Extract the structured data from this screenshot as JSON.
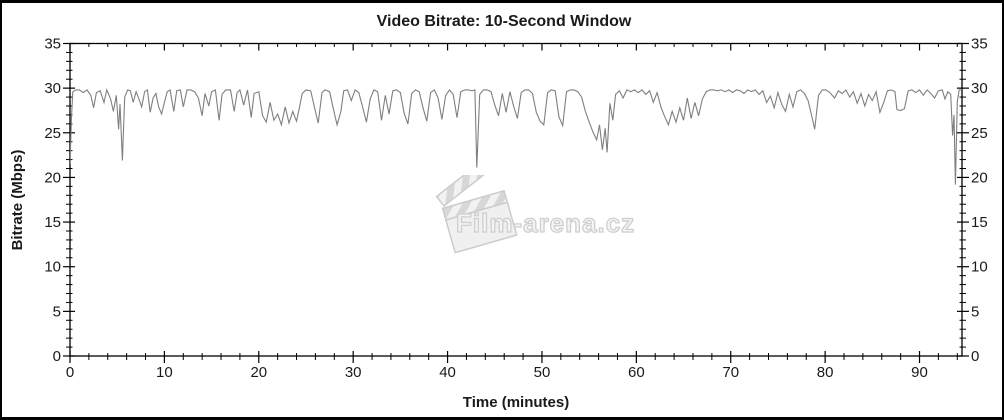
{
  "page": {
    "background": "#ffffff",
    "border_color": "#000000"
  },
  "watermark": {
    "text": "Film-arena.cz",
    "color": "#e9e9e9",
    "outline_color": "#cfcfcf"
  },
  "chart_data": {
    "type": "line",
    "title": "Video Bitrate: 10-Second Window",
    "xlabel": "Time (minutes)",
    "ylabel": "Bitrate (Mbps)",
    "xlim": [
      0,
      94.5
    ],
    "ylim": [
      0,
      35
    ],
    "x_major_ticks": [
      0,
      10,
      20,
      30,
      40,
      50,
      60,
      70,
      80,
      90
    ],
    "x_minor_step": 2,
    "y_major_ticks": [
      0,
      5,
      10,
      15,
      20,
      25,
      30,
      35
    ],
    "y_minor_step": 1,
    "y_axis_mirrored_right": true,
    "grid": false,
    "legend_position": "none",
    "axis_color": "#000000",
    "line_color": "#7f7f7f",
    "series": [
      {
        "name": "video-bitrate-10s-window",
        "points": [
          [
            0,
            21.5
          ],
          [
            0.15,
            26.5
          ],
          [
            0.3,
            29.6
          ],
          [
            0.6,
            29.8
          ],
          [
            1,
            29.8
          ],
          [
            1.4,
            29.5
          ],
          [
            1.8,
            29.8
          ],
          [
            2.2,
            29.2
          ],
          [
            2.5,
            27.8
          ],
          [
            2.8,
            29.5
          ],
          [
            3.2,
            29.7
          ],
          [
            3.6,
            28.4
          ],
          [
            3.9,
            29.8
          ],
          [
            4.3,
            28.8
          ],
          [
            4.6,
            27.4
          ],
          [
            4.9,
            29.2
          ],
          [
            5.15,
            25.4
          ],
          [
            5.3,
            28.2
          ],
          [
            5.55,
            21.9
          ],
          [
            5.8,
            29.0
          ],
          [
            6.1,
            29.8
          ],
          [
            6.4,
            29.7
          ],
          [
            6.7,
            28.4
          ],
          [
            7,
            29.6
          ],
          [
            7.3,
            28.8
          ],
          [
            7.6,
            27.9
          ],
          [
            7.9,
            29.6
          ],
          [
            8.2,
            29.8
          ],
          [
            8.5,
            27.3
          ],
          [
            8.8,
            28.9
          ],
          [
            9.1,
            29.4
          ],
          [
            9.4,
            27.9
          ],
          [
            9.7,
            27.1
          ],
          [
            10,
            28.4
          ],
          [
            10.3,
            29.6
          ],
          [
            10.6,
            29.8
          ],
          [
            11,
            27.4
          ],
          [
            11.3,
            29.7
          ],
          [
            11.7,
            29.8
          ],
          [
            12,
            27.9
          ],
          [
            12.4,
            29.8
          ],
          [
            12.8,
            29.8
          ],
          [
            13.2,
            29.6
          ],
          [
            13.6,
            28.9
          ],
          [
            14,
            26.9
          ],
          [
            14.3,
            29.4
          ],
          [
            14.7,
            28
          ],
          [
            15,
            29.6
          ],
          [
            15.4,
            29.8
          ],
          [
            15.8,
            26.4
          ],
          [
            16.1,
            29.3
          ],
          [
            16.5,
            29.8
          ],
          [
            17,
            29.8
          ],
          [
            17.4,
            27.4
          ],
          [
            17.7,
            29.5
          ],
          [
            18,
            29.8
          ],
          [
            18.4,
            28.1
          ],
          [
            18.8,
            29.8
          ],
          [
            19.2,
            26.7
          ],
          [
            19.5,
            29.4
          ],
          [
            20,
            29.6
          ],
          [
            20.4,
            26.9
          ],
          [
            20.8,
            26.2
          ],
          [
            21.2,
            28.4
          ],
          [
            21.6,
            26.4
          ],
          [
            22,
            27.1
          ],
          [
            22.4,
            25.9
          ],
          [
            22.8,
            27.9
          ],
          [
            23.2,
            26.1
          ],
          [
            23.6,
            27.4
          ],
          [
            24,
            26.3
          ],
          [
            24.3,
            27.8
          ],
          [
            24.6,
            29.4
          ],
          [
            25,
            29.8
          ],
          [
            25.5,
            29.7
          ],
          [
            26,
            27.4
          ],
          [
            26.3,
            26.1
          ],
          [
            26.7,
            29.5
          ],
          [
            27,
            29.8
          ],
          [
            27.5,
            29.6
          ],
          [
            28,
            27.2
          ],
          [
            28.3,
            25.9
          ],
          [
            28.7,
            27.4
          ],
          [
            29,
            29.7
          ],
          [
            29.4,
            29.8
          ],
          [
            29.8,
            28.6
          ],
          [
            30.2,
            29.8
          ],
          [
            30.6,
            29.5
          ],
          [
            31,
            27.9
          ],
          [
            31.4,
            26.2
          ],
          [
            31.8,
            28.8
          ],
          [
            32.2,
            29.8
          ],
          [
            32.6,
            29.6
          ],
          [
            33,
            26.4
          ],
          [
            33.4,
            29.2
          ],
          [
            33.8,
            27.1
          ],
          [
            34.2,
            29.7
          ],
          [
            34.6,
            29.8
          ],
          [
            35,
            29.5
          ],
          [
            35.4,
            27.2
          ],
          [
            35.8,
            26
          ],
          [
            36.2,
            29.4
          ],
          [
            36.6,
            29.8
          ],
          [
            37,
            29.6
          ],
          [
            37.4,
            27.8
          ],
          [
            37.8,
            26.3
          ],
          [
            38.2,
            29.5
          ],
          [
            38.6,
            29.8
          ],
          [
            39,
            28.9
          ],
          [
            39.4,
            26.5
          ],
          [
            39.8,
            29.2
          ],
          [
            40.2,
            29.8
          ],
          [
            40.6,
            29.3
          ],
          [
            41,
            26.7
          ],
          [
            41.4,
            29.6
          ],
          [
            41.8,
            29.8
          ],
          [
            42.2,
            29.8
          ],
          [
            42.6,
            29.7
          ],
          [
            42.9,
            29.8
          ],
          [
            43.1,
            21.1
          ],
          [
            43.4,
            29.3
          ],
          [
            43.8,
            29.8
          ],
          [
            44.2,
            29.8
          ],
          [
            44.6,
            29.6
          ],
          [
            45,
            28.1
          ],
          [
            45.4,
            26.9
          ],
          [
            45.8,
            29.4
          ],
          [
            46.2,
            27.3
          ],
          [
            46.6,
            29.6
          ],
          [
            47,
            28
          ],
          [
            47.4,
            26.6
          ],
          [
            47.8,
            29.5
          ],
          [
            48.2,
            29.8
          ],
          [
            48.6,
            29.8
          ],
          [
            49,
            29.4
          ],
          [
            49.4,
            27.3
          ],
          [
            49.8,
            26.3
          ],
          [
            50.2,
            25.9
          ],
          [
            50.6,
            29.5
          ],
          [
            51,
            29.8
          ],
          [
            51.4,
            29.7
          ],
          [
            51.8,
            26.8
          ],
          [
            52.2,
            25.8
          ],
          [
            52.6,
            29.6
          ],
          [
            53,
            29.8
          ],
          [
            53.4,
            29.8
          ],
          [
            53.8,
            29.6
          ],
          [
            54.2,
            29
          ],
          [
            54.6,
            27.4
          ],
          [
            55,
            26.2
          ],
          [
            55.4,
            25.1
          ],
          [
            55.8,
            24.2
          ],
          [
            56.1,
            25.9
          ],
          [
            56.4,
            23.1
          ],
          [
            56.7,
            25.5
          ],
          [
            56.9,
            22.8
          ],
          [
            57.2,
            28.3
          ],
          [
            57.5,
            26.4
          ],
          [
            57.8,
            29.3
          ],
          [
            58.2,
            29.7
          ],
          [
            58.6,
            28.9
          ],
          [
            59,
            29.8
          ],
          [
            59.4,
            29.6
          ],
          [
            59.8,
            29.8
          ],
          [
            60.2,
            29.5
          ],
          [
            60.6,
            29.8
          ],
          [
            61,
            29.3
          ],
          [
            61.4,
            29.7
          ],
          [
            61.8,
            28.4
          ],
          [
            62.2,
            29.5
          ],
          [
            62.6,
            27.9
          ],
          [
            63,
            26.8
          ],
          [
            63.4,
            25.9
          ],
          [
            63.8,
            27.4
          ],
          [
            64.2,
            26.2
          ],
          [
            64.6,
            27.8
          ],
          [
            65,
            26.4
          ],
          [
            65.4,
            28.9
          ],
          [
            65.8,
            26.6
          ],
          [
            66.2,
            28.4
          ],
          [
            66.6,
            26.9
          ],
          [
            67,
            28.8
          ],
          [
            67.4,
            29.6
          ],
          [
            67.8,
            29.8
          ],
          [
            68.2,
            29.8
          ],
          [
            68.6,
            29.7
          ],
          [
            69,
            29.8
          ],
          [
            69.4,
            29.6
          ],
          [
            69.8,
            29.8
          ],
          [
            70.2,
            29.5
          ],
          [
            70.6,
            29.8
          ],
          [
            71,
            29.7
          ],
          [
            71.4,
            29.4
          ],
          [
            71.8,
            29.8
          ],
          [
            72.2,
            29.6
          ],
          [
            72.6,
            29.8
          ],
          [
            73,
            29.3
          ],
          [
            73.4,
            29.7
          ],
          [
            73.8,
            28.4
          ],
          [
            74.2,
            29.1
          ],
          [
            74.6,
            27.8
          ],
          [
            75,
            29.5
          ],
          [
            75.4,
            28.2
          ],
          [
            75.8,
            27.4
          ],
          [
            76.2,
            29.3
          ],
          [
            76.6,
            27.9
          ],
          [
            77,
            29.6
          ],
          [
            77.4,
            29.8
          ],
          [
            77.8,
            29.4
          ],
          [
            78.2,
            28.6
          ],
          [
            78.6,
            26.8
          ],
          [
            78.9,
            25.4
          ],
          [
            79.3,
            29.2
          ],
          [
            79.7,
            29.8
          ],
          [
            80.1,
            29.8
          ],
          [
            80.5,
            29.5
          ],
          [
            81,
            28.9
          ],
          [
            81.4,
            29.7
          ],
          [
            81.8,
            29.4
          ],
          [
            82.2,
            29.8
          ],
          [
            82.6,
            29
          ],
          [
            83,
            29.6
          ],
          [
            83.4,
            28.3
          ],
          [
            83.8,
            29.4
          ],
          [
            84.2,
            28
          ],
          [
            84.6,
            29.3
          ],
          [
            85,
            28.6
          ],
          [
            85.4,
            29.6
          ],
          [
            85.8,
            27.3
          ],
          [
            86.2,
            28.4
          ],
          [
            86.6,
            29.7
          ],
          [
            87,
            29.8
          ],
          [
            87.4,
            29.6
          ],
          [
            87.6,
            27.6
          ],
          [
            88,
            27.5
          ],
          [
            88.4,
            27.7
          ],
          [
            88.8,
            29.7
          ],
          [
            89.2,
            29.8
          ],
          [
            89.6,
            29.5
          ],
          [
            90,
            29.8
          ],
          [
            90.4,
            29.2
          ],
          [
            90.8,
            29.8
          ],
          [
            91.2,
            29.4
          ],
          [
            91.6,
            28.9
          ],
          [
            92,
            29.7
          ],
          [
            92.4,
            29.8
          ],
          [
            92.7,
            28.8
          ],
          [
            93,
            29.6
          ],
          [
            93.3,
            29.3
          ],
          [
            93.5,
            24.7
          ],
          [
            93.65,
            27
          ],
          [
            93.8,
            19.2
          ],
          [
            94,
            28.5
          ],
          [
            94.2,
            29.8
          ],
          [
            94.5,
            29.8
          ]
        ]
      }
    ]
  }
}
